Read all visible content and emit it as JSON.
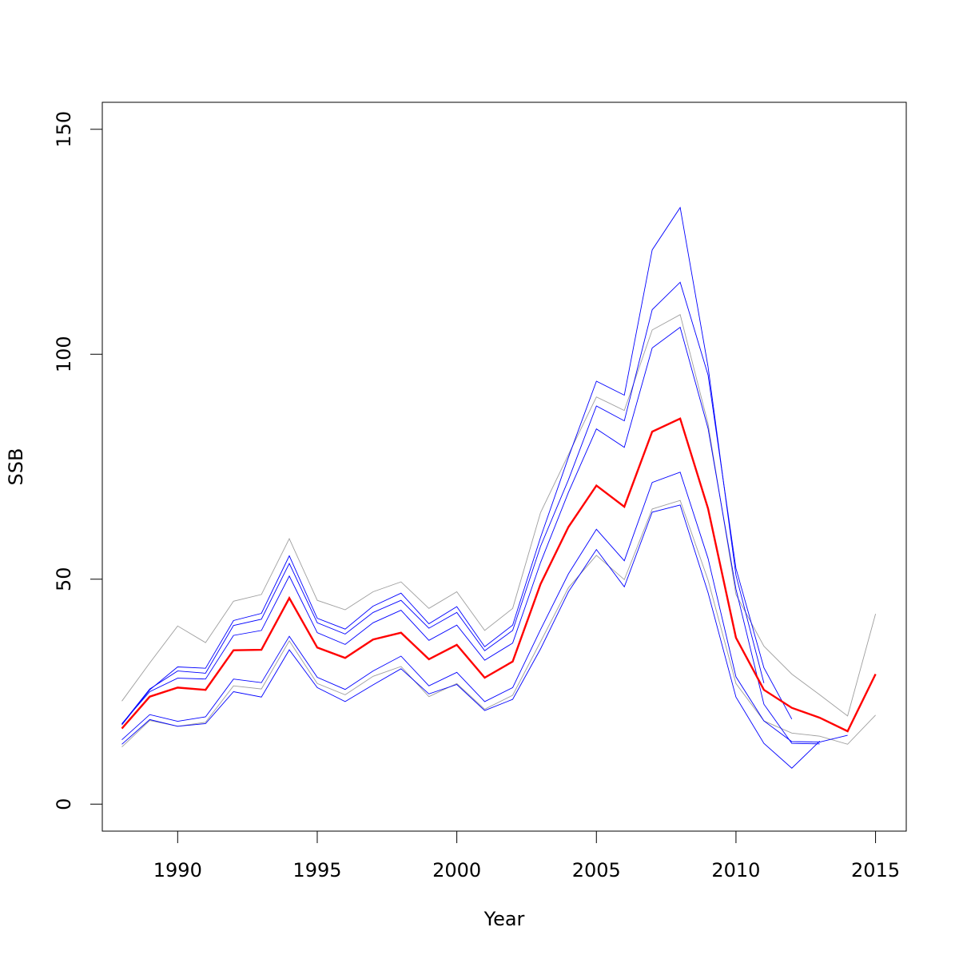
{
  "chart_data": {
    "type": "line",
    "title": "",
    "xlabel": "Year",
    "ylabel": "SSB",
    "xlim": [
      1987.3,
      2016.1
    ],
    "ylim": [
      -6,
      156
    ],
    "x_ticks": [
      {
        "value": 1990,
        "label": "1990"
      },
      {
        "value": 1995,
        "label": "1995"
      },
      {
        "value": 2000,
        "label": "2000"
      },
      {
        "value": 2005,
        "label": "2005"
      },
      {
        "value": 2010,
        "label": "2010"
      },
      {
        "value": 2015,
        "label": "2015"
      }
    ],
    "y_ticks": [
      {
        "value": 0,
        "label": "0"
      },
      {
        "value": 50,
        "label": "50"
      },
      {
        "value": 100,
        "label": "100"
      },
      {
        "value": 150,
        "label": "150"
      }
    ],
    "grid": false,
    "legend": "none",
    "series": [
      {
        "color": "#9e9e9e",
        "stroke": "thin",
        "x": [
          1988,
          1989,
          1990,
          1991,
          1992,
          1993,
          1994,
          1995,
          1996,
          1997,
          1998,
          1999,
          2000,
          2001,
          2002,
          2003,
          2004,
          2005,
          2006,
          2007,
          2008,
          2009,
          2010,
          2011,
          2012,
          2013,
          2014,
          2015
        ],
        "values": [
          22.9,
          31.4,
          39.6,
          35.9,
          45.1,
          46.6,
          59.0,
          45.3,
          43.2,
          47.2,
          49.4,
          43.5,
          47.2,
          38.6,
          43.5,
          64.8,
          77.7,
          90.5,
          87.5,
          105.4,
          108.8,
          84.5,
          46.6,
          35.1,
          28.9,
          24.3,
          19.6,
          42.3
        ]
      },
      {
        "color": "#9e9e9e",
        "stroke": "thin",
        "x": [
          1988,
          1989,
          1990,
          1991,
          1992,
          1993,
          1994,
          1995,
          1996,
          1997,
          1998,
          1999,
          2000,
          2001,
          2002,
          2003,
          2004,
          2005,
          2006,
          2007,
          2008,
          2009,
          2010,
          2011,
          2012,
          2013,
          2014,
          2015
        ],
        "values": [
          12.7,
          18.6,
          17.3,
          18.2,
          26.3,
          25.6,
          36.3,
          26.8,
          24.3,
          28.4,
          30.6,
          23.9,
          26.8,
          21.1,
          24.2,
          36.1,
          48.1,
          55.3,
          49.9,
          65.6,
          67.5,
          49.8,
          26.8,
          18.5,
          15.8,
          15.1,
          13.3,
          19.8
        ]
      },
      {
        "color": "#0000ff",
        "stroke": "thin",
        "x": [
          1988,
          1989,
          1990,
          1991,
          1992,
          1993,
          1994,
          1995,
          1996,
          1997,
          1998,
          1999,
          2000,
          2001,
          2002,
          2003,
          2004,
          2005,
          2006,
          2007,
          2008,
          2009,
          2010,
          2011
        ],
        "values": [
          17.6,
          25.4,
          30.5,
          30.2,
          40.8,
          42.4,
          55.2,
          41.3,
          38.9,
          44.0,
          46.9,
          40.1,
          43.9,
          35.0,
          39.8,
          59.3,
          77.1,
          94.0,
          90.9,
          123.2,
          132.6,
          97.2,
          50.9,
          26.9
        ]
      },
      {
        "color": "#0000ff",
        "stroke": "thin",
        "x": [
          1988,
          1989,
          1990,
          1991,
          1992,
          1993,
          1994,
          1995,
          1996,
          1997,
          1998,
          1999,
          2000,
          2001,
          2002,
          2003,
          2004,
          2005,
          2006,
          2007,
          2008,
          2009,
          2010,
          2011,
          2012
        ],
        "values": [
          17.8,
          25.6,
          29.6,
          29.1,
          39.7,
          41.1,
          53.5,
          40.3,
          37.8,
          42.6,
          45.3,
          39.1,
          42.6,
          34.1,
          38.6,
          57.3,
          72.1,
          88.5,
          85.2,
          109.9,
          116.0,
          95.4,
          52.4,
          30.3,
          18.9
        ]
      },
      {
        "color": "#0000ff",
        "stroke": "thin",
        "x": [
          1988,
          1989,
          1990,
          1991,
          1992,
          1993,
          1994,
          1995,
          1996,
          1997,
          1998,
          1999,
          2000,
          2001,
          2002,
          2003,
          2004,
          2005,
          2006,
          2007,
          2008,
          2009,
          2010,
          2011,
          2012,
          2013
        ],
        "values": [
          17.9,
          25.0,
          28.0,
          27.8,
          37.5,
          38.6,
          50.7,
          38.1,
          35.5,
          40.3,
          43.1,
          36.4,
          39.8,
          32.0,
          35.8,
          53.7,
          69.3,
          83.4,
          79.3,
          101.4,
          106.0,
          83.5,
          47.8,
          22.2,
          13.5,
          13.4
        ]
      },
      {
        "color": "#0000ff",
        "stroke": "thin",
        "x": [
          1988,
          1989,
          1990,
          1991,
          1992,
          1993,
          1994,
          1995,
          1996,
          1997,
          1998,
          1999,
          2000,
          2001,
          2002,
          2003,
          2004,
          2005,
          2006,
          2007,
          2008,
          2009,
          2010,
          2011,
          2012,
          2013,
          2014
        ],
        "values": [
          14.3,
          19.9,
          18.4,
          19.4,
          27.8,
          27.0,
          37.3,
          28.2,
          25.5,
          29.6,
          32.9,
          26.3,
          29.3,
          22.8,
          25.9,
          38.8,
          51.2,
          61.1,
          54.1,
          71.5,
          73.8,
          54.6,
          28.3,
          18.5,
          13.9,
          13.8,
          15.3
        ]
      },
      {
        "color": "#0000ff",
        "stroke": "thin",
        "x": [
          1988,
          1989,
          1990,
          1991,
          1992,
          1993,
          1994,
          1995,
          1996,
          1997,
          1998,
          1999,
          2000,
          2001,
          2002,
          2003,
          2004,
          2005,
          2006,
          2007,
          2008,
          2009,
          2010,
          2011,
          2012,
          2013
        ],
        "values": [
          13.3,
          18.8,
          17.3,
          17.9,
          25.0,
          23.8,
          34.3,
          25.9,
          22.8,
          26.5,
          30.1,
          24.5,
          26.6,
          20.8,
          23.3,
          34.5,
          47.2,
          56.6,
          48.3,
          64.9,
          66.5,
          47.0,
          23.8,
          13.5,
          8.0,
          14.0
        ]
      },
      {
        "color": "#ff0000",
        "stroke": "thick",
        "x": [
          1988,
          1989,
          1990,
          1991,
          1992,
          1993,
          1994,
          1995,
          1996,
          1997,
          1998,
          1999,
          2000,
          2001,
          2002,
          2003,
          2004,
          2005,
          2006,
          2007,
          2008,
          2009,
          2010,
          2011,
          2012,
          2013,
          2014,
          2015
        ],
        "values": [
          16.8,
          23.9,
          25.9,
          25.4,
          34.2,
          34.3,
          45.8,
          34.8,
          32.5,
          36.6,
          38.1,
          32.2,
          35.4,
          28.1,
          31.7,
          48.9,
          61.6,
          70.8,
          66.1,
          82.8,
          85.7,
          65.7,
          37.0,
          25.4,
          21.4,
          19.2,
          16.2,
          28.9
        ]
      }
    ]
  }
}
